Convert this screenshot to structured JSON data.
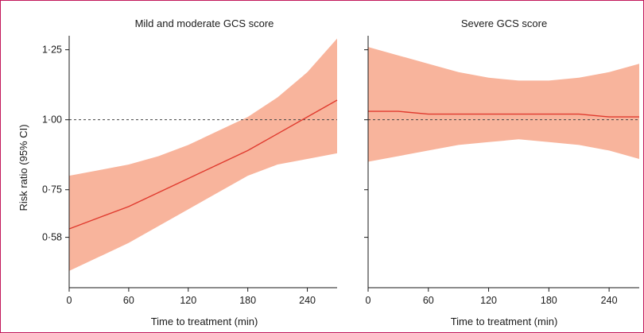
{
  "chart_data": [
    {
      "type": "line",
      "title": "Mild and moderate GCS score",
      "xlabel": "Time to treatment (min)",
      "ylabel": "Risk ratio (95% CI)",
      "xlim": [
        0,
        270
      ],
      "ylim": [
        0.4,
        1.3
      ],
      "x_ticks": [
        0,
        60,
        120,
        180,
        240
      ],
      "x_tick_labels": [
        "0",
        "60",
        "120",
        "180",
        "240"
      ],
      "y_ticks": [
        0.58,
        0.75,
        1.0,
        1.25
      ],
      "y_tick_labels": [
        "0·58",
        "0·75",
        "1·00",
        "1·25"
      ],
      "reference_line": 1.0,
      "colors": {
        "line": "#e03a2e",
        "band": "#f8b49c"
      },
      "series": [
        {
          "x": [
            0,
            30,
            60,
            90,
            120,
            150,
            180,
            210,
            240,
            270
          ],
          "values": [
            0.61,
            0.65,
            0.69,
            0.74,
            0.79,
            0.84,
            0.89,
            0.95,
            1.01,
            1.07
          ],
          "lower": [
            0.46,
            0.51,
            0.56,
            0.62,
            0.68,
            0.74,
            0.8,
            0.84,
            0.86,
            0.88
          ],
          "upper": [
            0.8,
            0.82,
            0.84,
            0.87,
            0.91,
            0.96,
            1.01,
            1.08,
            1.17,
            1.29
          ]
        }
      ]
    },
    {
      "type": "line",
      "title": "Severe GCS score",
      "xlabel": "Time to treatment (min)",
      "ylabel": "",
      "xlim": [
        0,
        270
      ],
      "ylim": [
        0.4,
        1.3
      ],
      "x_ticks": [
        0,
        60,
        120,
        180,
        240
      ],
      "x_tick_labels": [
        "0",
        "60",
        "120",
        "180",
        "240"
      ],
      "y_ticks": [
        0.58,
        0.75,
        1.0,
        1.25
      ],
      "reference_line": 1.0,
      "colors": {
        "line": "#e03a2e",
        "band": "#f8b49c"
      },
      "series": [
        {
          "x": [
            0,
            30,
            60,
            90,
            120,
            150,
            180,
            210,
            240,
            270
          ],
          "values": [
            1.03,
            1.03,
            1.02,
            1.02,
            1.02,
            1.02,
            1.02,
            1.02,
            1.01,
            1.01
          ],
          "lower": [
            0.85,
            0.87,
            0.89,
            0.91,
            0.92,
            0.93,
            0.92,
            0.91,
            0.89,
            0.86
          ],
          "upper": [
            1.26,
            1.23,
            1.2,
            1.17,
            1.15,
            1.14,
            1.14,
            1.15,
            1.17,
            1.2
          ]
        }
      ]
    }
  ]
}
